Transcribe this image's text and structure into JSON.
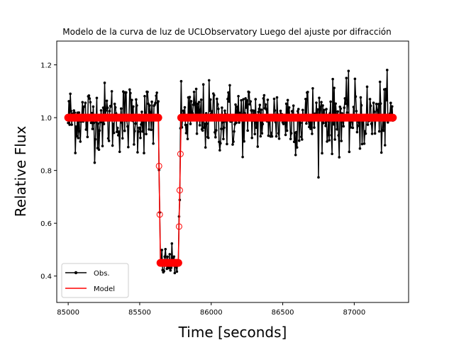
{
  "chart_data": {
    "type": "line",
    "title": "Modelo de la curva de luz de UCLObservatory Luego del ajuste por difracción",
    "xlabel": "Time [seconds]",
    "ylabel": "Relative Flux",
    "xlim": [
      84920,
      87380
    ],
    "ylim": [
      0.3,
      1.29
    ],
    "xticks": [
      85000,
      85500,
      86000,
      86500,
      87000
    ],
    "yticks": [
      0.4,
      0.6,
      0.8,
      1.0,
      1.2
    ],
    "xtick_labels": [
      "85000",
      "85500",
      "86000",
      "86500",
      "87000"
    ],
    "ytick_labels": [
      "0.4",
      "0.6",
      "0.8",
      "1.0",
      "1.2"
    ],
    "grid": false,
    "legend_position": "lower-left",
    "x_range": [
      85000,
      87270
    ],
    "x_step": 5,
    "transit": {
      "ingress_start": 85630,
      "ingress_end": 85645,
      "egress_start": 85770,
      "egress_end": 85790,
      "bottom_flux": 0.45,
      "out_of_transit_flux": 1.0
    },
    "noise_scatter": 0.065,
    "series": [
      {
        "name": "Obs.",
        "color": "#000000",
        "marker": "dot",
        "style": "line"
      },
      {
        "name": "Model",
        "color": "#ff0000",
        "marker": "circle",
        "style": "line"
      }
    ]
  }
}
